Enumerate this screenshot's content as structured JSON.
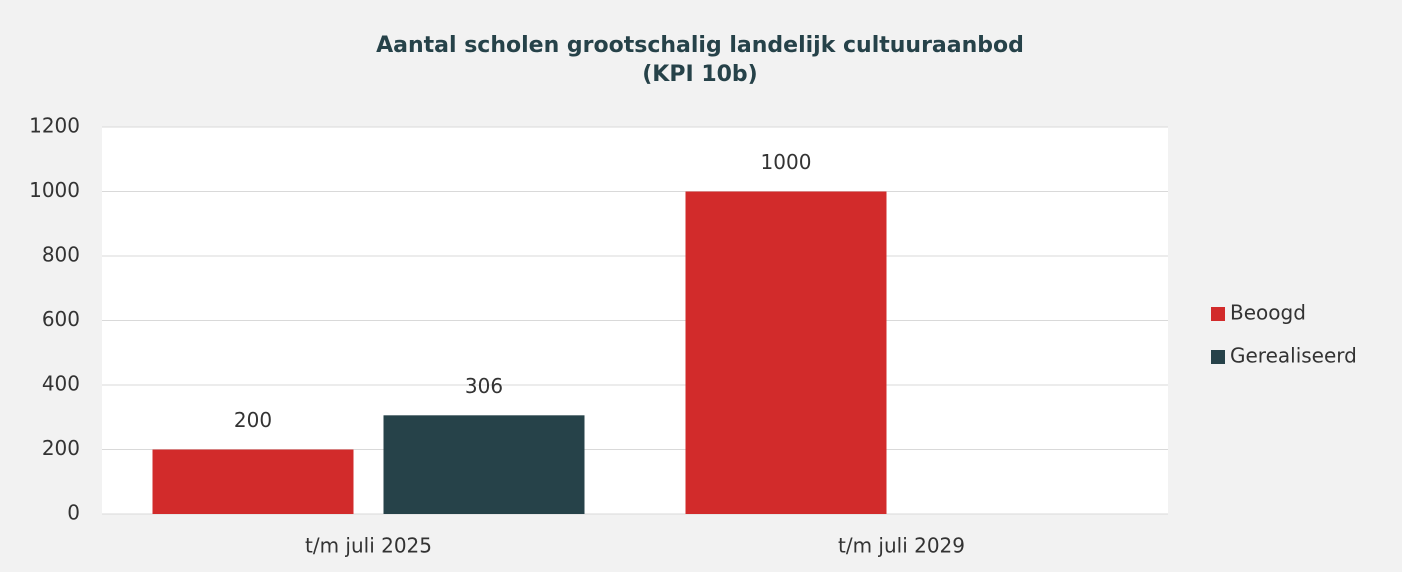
{
  "chart_data": {
    "type": "bar",
    "title": "Aantal scholen grootschalig landelijk cultuuraanbod",
    "subtitle": "(KPI 10b)",
    "categories": [
      "t/m juli 2025",
      "t/m juli 2029"
    ],
    "series": [
      {
        "name": "Beoogd",
        "color": "#d22b2b",
        "values": [
          200,
          1000
        ]
      },
      {
        "name": "Gerealiseerd",
        "color": "#264249",
        "values": [
          306,
          null
        ]
      }
    ],
    "ylim": [
      0,
      1200
    ],
    "yticks": [
      0,
      200,
      400,
      600,
      800,
      1000,
      1200
    ],
    "grid": true,
    "legend": "right",
    "data_labels": true
  }
}
